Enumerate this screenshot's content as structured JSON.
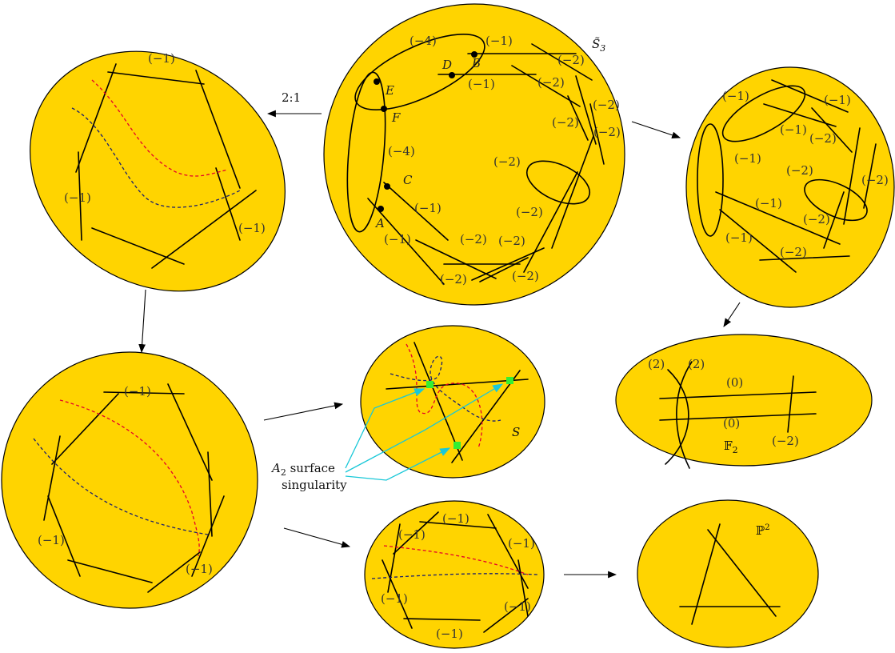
{
  "labels": {
    "m1": "(−1)",
    "m2": "(−2)",
    "m4": "(−4)",
    "zero": "(0)",
    "two": "(2)"
  },
  "surfaces": {
    "s3tilde": "S̃",
    "s3tilde_sub": "3",
    "s": "S",
    "f2": "𝔽",
    "f2_sub": "2",
    "p2": "ℙ",
    "p2_sup": "2"
  },
  "points": {
    "A": "A",
    "B": "B",
    "C": "C",
    "D": "D",
    "E": "E",
    "F": "F"
  },
  "arrow_2to1": "2:1",
  "annotation": {
    "line1_pre": "A",
    "line1_sub": "2",
    "line1_post": " surface",
    "line2": "singularity"
  },
  "colors": {
    "blob": "#FFD400",
    "red_curve": "#e4002b",
    "blue_curve": "#1a1f6e",
    "callout": "#19c8d8",
    "singular_point": "#33ee33"
  }
}
